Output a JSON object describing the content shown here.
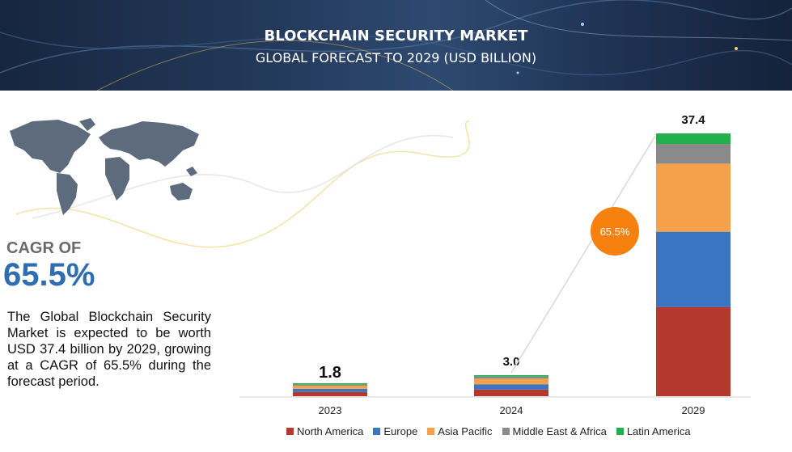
{
  "banner": {
    "title": "BLOCKCHAIN SECURITY MARKET",
    "subtitle": "GLOBAL FORECAST TO 2029 (USD BILLION)"
  },
  "cagr": {
    "label": "CAGR OF",
    "value": "65.5%"
  },
  "description": "The Global Blockchain Security Market is expected to be worth USD  37.4 billion by 2029, growing at a CAGR of 65.5% during the forecast period.",
  "map_icon": "world-map-icon",
  "chart_data": {
    "type": "bar",
    "stacked": true,
    "categories": [
      "2023",
      "2024",
      "2029"
    ],
    "totals": [
      "1.8",
      "3.0",
      "37.4"
    ],
    "series": [
      {
        "name": "North America",
        "color": "#b5382f",
        "values": [
          0.6,
          0.95,
          12.7
        ]
      },
      {
        "name": "Europe",
        "color": "#3a75c4",
        "values": [
          0.45,
          0.75,
          10.7
        ]
      },
      {
        "name": "Asia Pacific",
        "color": "#f5a04a",
        "values": [
          0.45,
          0.8,
          9.7
        ]
      },
      {
        "name": "Middle East & Africa",
        "color": "#8a8a8a",
        "values": [
          0.18,
          0.3,
          2.8
        ]
      },
      {
        "name": "Latin America",
        "color": "#22b04c",
        "values": [
          0.12,
          0.2,
          1.5
        ]
      }
    ],
    "annotation": "65.5%",
    "annotation_color": "#f7810f",
    "ylim": [
      0,
      37.4
    ],
    "grid": false
  }
}
